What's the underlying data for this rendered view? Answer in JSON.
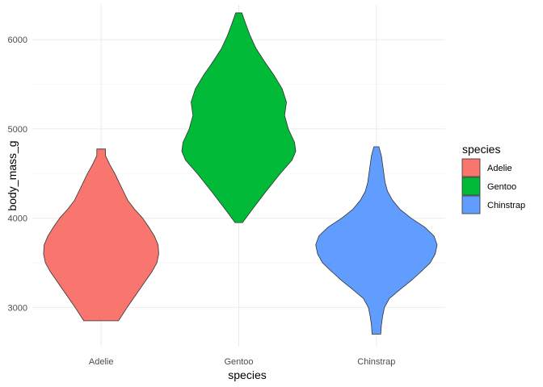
{
  "chart_data": {
    "type": "violin",
    "xlabel": "species",
    "ylabel": "body_mass_g",
    "categories": [
      "Adelie",
      "Gentoo",
      "Chinstrap"
    ],
    "yticks": [
      3000,
      4000,
      5000,
      6000
    ],
    "ylim": [
      2560,
      6390
    ],
    "grid": true,
    "legend": {
      "title": "species",
      "placement": "right",
      "entries": [
        "Adelie",
        "Gentoo",
        "Chinstrap"
      ]
    },
    "series": [
      {
        "name": "Adelie",
        "color": "#F8766D",
        "density": [
          [
            2850,
            0.28
          ],
          [
            3000,
            0.42
          ],
          [
            3200,
            0.62
          ],
          [
            3400,
            0.82
          ],
          [
            3500,
            0.9
          ],
          [
            3600,
            0.93
          ],
          [
            3700,
            0.92
          ],
          [
            3800,
            0.86
          ],
          [
            3900,
            0.77
          ],
          [
            4000,
            0.67
          ],
          [
            4100,
            0.54
          ],
          [
            4200,
            0.43
          ],
          [
            4300,
            0.36
          ],
          [
            4400,
            0.29
          ],
          [
            4500,
            0.22
          ],
          [
            4600,
            0.14
          ],
          [
            4700,
            0.07
          ],
          [
            4775,
            0.07
          ]
        ]
      },
      {
        "name": "Gentoo",
        "color": "#00BA38",
        "density": [
          [
            3950,
            0.06
          ],
          [
            4100,
            0.22
          ],
          [
            4300,
            0.44
          ],
          [
            4500,
            0.67
          ],
          [
            4650,
            0.86
          ],
          [
            4750,
            0.92
          ],
          [
            4850,
            0.9
          ],
          [
            5000,
            0.8
          ],
          [
            5150,
            0.74
          ],
          [
            5300,
            0.77
          ],
          [
            5450,
            0.7
          ],
          [
            5600,
            0.57
          ],
          [
            5750,
            0.42
          ],
          [
            5900,
            0.28
          ],
          [
            6050,
            0.18
          ],
          [
            6200,
            0.1
          ],
          [
            6300,
            0.05
          ]
        ]
      },
      {
        "name": "Chinstrap",
        "color": "#619CFF",
        "density": [
          [
            2700,
            0.07
          ],
          [
            2800,
            0.08
          ],
          [
            2900,
            0.1
          ],
          [
            3000,
            0.13
          ],
          [
            3100,
            0.21
          ],
          [
            3200,
            0.38
          ],
          [
            3300,
            0.56
          ],
          [
            3400,
            0.72
          ],
          [
            3500,
            0.87
          ],
          [
            3600,
            0.95
          ],
          [
            3700,
            0.98
          ],
          [
            3800,
            0.93
          ],
          [
            3900,
            0.78
          ],
          [
            4000,
            0.56
          ],
          [
            4100,
            0.38
          ],
          [
            4200,
            0.26
          ],
          [
            4300,
            0.18
          ],
          [
            4400,
            0.14
          ],
          [
            4500,
            0.12
          ],
          [
            4600,
            0.1
          ],
          [
            4700,
            0.08
          ],
          [
            4800,
            0.04
          ]
        ]
      }
    ]
  }
}
